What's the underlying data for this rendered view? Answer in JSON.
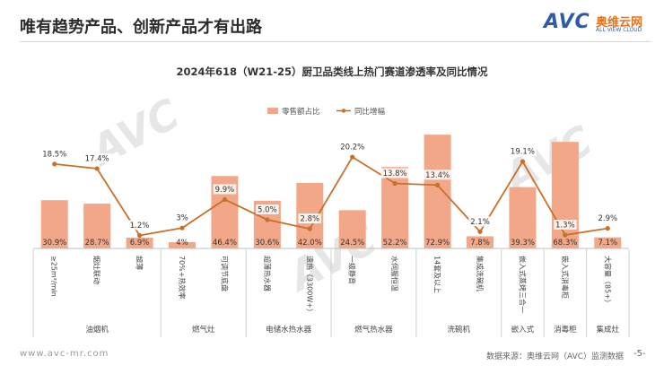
{
  "header": {
    "title": "唯有趋势产品、创新产品才有出路",
    "logo_text": "AVC",
    "logo_cn": "奥维云网",
    "logo_en": "ALL VIEW CLOUD"
  },
  "watermark": "AVC",
  "footer": {
    "url": "www.avc-mr.com",
    "source": "数据来源：奥维云网（AVC）监测数据",
    "page": "-5-"
  },
  "chart_data": {
    "type": "bar",
    "title": "2024年618（W21-25）厨卫品类线上热门赛道渗透率及同比情况",
    "legend": {
      "placement": "top-right",
      "bar_label": "零售额占比",
      "line_label": "同比增幅"
    },
    "categories": [
      "≥25m³/min",
      "烟灶联动",
      "超薄",
      "70%+热效率",
      "可调节底盘",
      "超薄热水器",
      "速热（3300W+）",
      "一级静音",
      "水伺服恒温",
      "14套及以上",
      "集成洗碗机",
      "嵌入式蒸烤三合一",
      "嵌入式消毒柜",
      "大容量（85+）"
    ],
    "groups": [
      {
        "label": "油烟机",
        "span": 3
      },
      {
        "label": "燃气灶",
        "span": 2
      },
      {
        "label": "电储水热水器",
        "span": 2
      },
      {
        "label": "燃气热水器",
        "span": 2
      },
      {
        "label": "洗碗机",
        "span": 2
      },
      {
        "label": "嵌入式",
        "span": 1
      },
      {
        "label": "消毒柜",
        "span": 1
      },
      {
        "label": "集成灶",
        "span": 1
      }
    ],
    "series": [
      {
        "name": "零售额占比",
        "kind": "bar",
        "color": "#f2a888",
        "values": [
          30.9,
          28.7,
          6.9,
          4.0,
          46.4,
          30.6,
          42.0,
          24.5,
          52.2,
          72.9,
          7.8,
          39.3,
          68.3,
          7.1
        ],
        "labels": [
          "30.9%",
          "28.7%",
          "6.9%",
          "4%",
          "46.4%",
          "30.6%",
          "42.0%",
          "24.5%",
          "52.2%",
          "72.9%",
          "7.8%",
          "39.3%",
          "68.3%",
          "7.1%"
        ]
      },
      {
        "name": "同比增幅",
        "kind": "line",
        "color": "#c8702a",
        "values": [
          18.5,
          17.4,
          1.2,
          3.0,
          9.9,
          5.0,
          2.8,
          20.2,
          13.8,
          13.4,
          2.1,
          19.1,
          1.3,
          2.9
        ],
        "labels": [
          "18.5%",
          "17.4%",
          "1.2%",
          "3%",
          "9.9%",
          "5.0%",
          "2.8%",
          "20.2%",
          "13.8%",
          "13.4%",
          "2.1%",
          "19.1%",
          "1.3%",
          "2.9%"
        ]
      }
    ]
  }
}
